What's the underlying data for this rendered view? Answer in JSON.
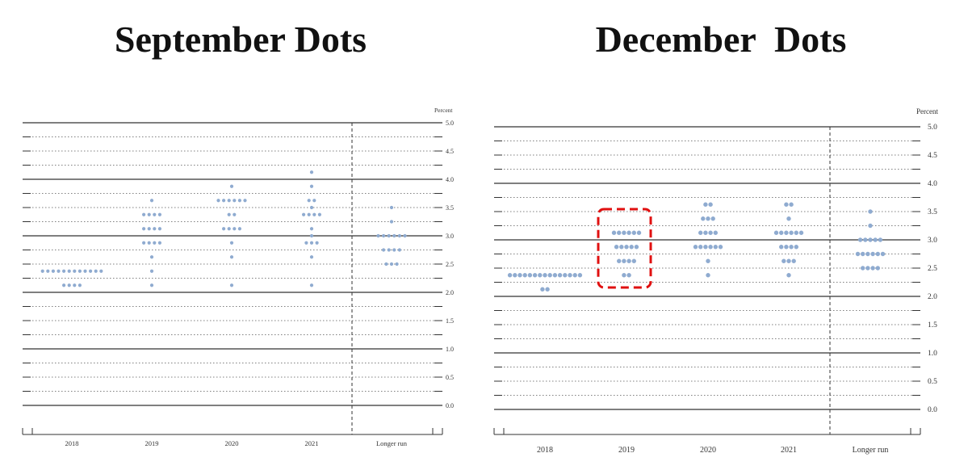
{
  "chart_data": [
    {
      "type": "scatter",
      "title": "September Dots",
      "ylabel": "Percent",
      "ylim": [
        0,
        5
      ],
      "yticks": [
        "0.0",
        "0.5",
        "1.0",
        "1.5",
        "2.0",
        "2.5",
        "3.0",
        "3.5",
        "4.0",
        "4.5",
        "5.0"
      ],
      "categories": [
        "2018",
        "2019",
        "2020",
        "2021",
        "Longer run"
      ],
      "dots": [
        [
          [
            2.375,
            12
          ],
          [
            2.125,
            4
          ]
        ],
        [
          [
            3.625,
            1
          ],
          [
            3.375,
            4
          ],
          [
            3.125,
            4
          ],
          [
            2.875,
            4
          ],
          [
            2.625,
            1
          ],
          [
            2.375,
            1
          ],
          [
            2.125,
            1
          ]
        ],
        [
          [
            3.875,
            1
          ],
          [
            3.625,
            6
          ],
          [
            3.375,
            2
          ],
          [
            3.125,
            4
          ],
          [
            2.875,
            1
          ],
          [
            2.625,
            1
          ],
          [
            2.125,
            1
          ]
        ],
        [
          [
            4.125,
            1
          ],
          [
            3.875,
            1
          ],
          [
            3.625,
            2
          ],
          [
            3.5,
            1
          ],
          [
            3.375,
            4
          ],
          [
            3.125,
            1
          ],
          [
            3.0,
            1
          ],
          [
            2.875,
            3
          ],
          [
            2.625,
            1
          ],
          [
            2.125,
            1
          ]
        ],
        [
          [
            3.5,
            1
          ],
          [
            3.25,
            1
          ],
          [
            3.0,
            6
          ],
          [
            2.75,
            4
          ],
          [
            2.5,
            3
          ]
        ]
      ]
    },
    {
      "type": "scatter",
      "title": "December  Dots",
      "ylabel": "Percent",
      "ylim": [
        0,
        5
      ],
      "yticks": [
        "0.0",
        "0.5",
        "1.0",
        "1.5",
        "2.0",
        "2.5",
        "3.0",
        "3.5",
        "4.0",
        "4.5",
        "5.0"
      ],
      "categories": [
        "2018",
        "2019",
        "2020",
        "2021",
        "Longer run"
      ],
      "highlight_category": "2019",
      "highlight_color": "#e01010",
      "dots": [
        [
          [
            2.375,
            15
          ],
          [
            2.125,
            2
          ]
        ],
        [
          [
            3.125,
            6
          ],
          [
            2.875,
            5
          ],
          [
            2.625,
            4
          ],
          [
            2.375,
            2
          ]
        ],
        [
          [
            3.625,
            2
          ],
          [
            3.375,
            3
          ],
          [
            3.125,
            4
          ],
          [
            2.875,
            6
          ],
          [
            2.625,
            1
          ],
          [
            2.375,
            1
          ]
        ],
        [
          [
            3.625,
            2
          ],
          [
            3.375,
            1
          ],
          [
            3.125,
            6
          ],
          [
            2.875,
            4
          ],
          [
            2.625,
            3
          ],
          [
            2.375,
            1
          ]
        ],
        [
          [
            3.5,
            1
          ],
          [
            3.25,
            1
          ],
          [
            3.0,
            5
          ],
          [
            2.75,
            6
          ],
          [
            2.5,
            4
          ]
        ]
      ]
    }
  ],
  "dot_color": "#8fabd0"
}
